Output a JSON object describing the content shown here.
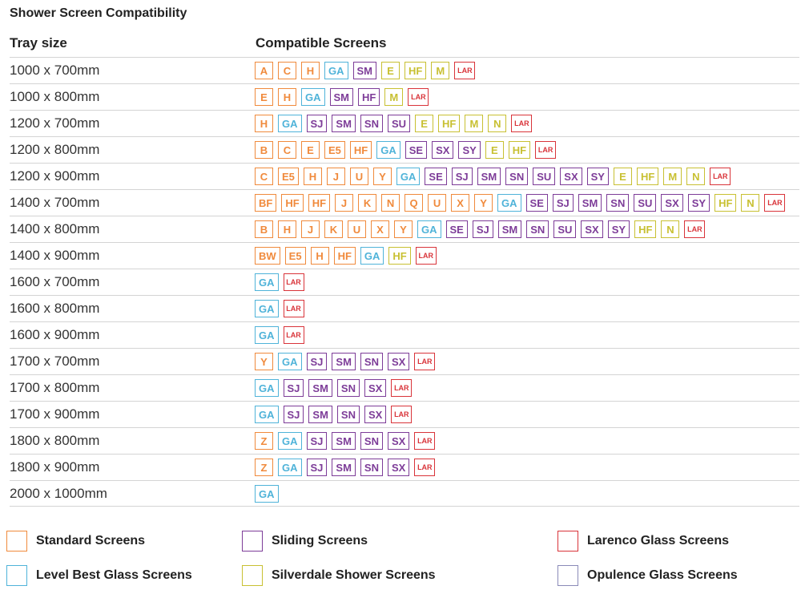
{
  "title": "Shower Screen Compatibility",
  "headers": {
    "tray": "Tray size",
    "compatible": "Compatible Screens"
  },
  "categories": {
    "standard": {
      "label": "Standard Screens",
      "color": "#f08a3c"
    },
    "levelbest": {
      "label": "Level Best Glass Screens",
      "color": "#4fb3d9"
    },
    "sliding": {
      "label": "Sliding Screens",
      "color": "#7d3c98"
    },
    "silverdale": {
      "label": "Silverdale Shower Screens",
      "color": "#c8c032"
    },
    "larenco": {
      "label": "Larenco Glass Screens",
      "color": "#d9343a"
    },
    "opulence": {
      "label": "Opulence Glass Screens",
      "color": "#8a8ab8"
    }
  },
  "rows": [
    {
      "tray": "1000 x 700mm",
      "screens": [
        [
          "A",
          "standard"
        ],
        [
          "C",
          "standard"
        ],
        [
          "H",
          "standard"
        ],
        [
          "GA",
          "levelbest"
        ],
        [
          "SM",
          "sliding"
        ],
        [
          "E",
          "silverdale"
        ],
        [
          "HF",
          "silverdale"
        ],
        [
          "M",
          "silverdale"
        ],
        [
          "LAR",
          "larenco"
        ]
      ]
    },
    {
      "tray": "1000 x 800mm",
      "screens": [
        [
          "E",
          "standard"
        ],
        [
          "H",
          "standard"
        ],
        [
          "GA",
          "levelbest"
        ],
        [
          "SM",
          "sliding"
        ],
        [
          "HF",
          "sliding"
        ],
        [
          "M",
          "silverdale"
        ],
        [
          "LAR",
          "larenco"
        ]
      ]
    },
    {
      "tray": "1200 x 700mm",
      "screens": [
        [
          "H",
          "standard"
        ],
        [
          "GA",
          "levelbest"
        ],
        [
          "SJ",
          "sliding"
        ],
        [
          "SM",
          "sliding"
        ],
        [
          "SN",
          "sliding"
        ],
        [
          "SU",
          "sliding"
        ],
        [
          "E",
          "silverdale"
        ],
        [
          "HF",
          "silverdale"
        ],
        [
          "M",
          "silverdale"
        ],
        [
          "N",
          "silverdale"
        ],
        [
          "LAR",
          "larenco"
        ]
      ]
    },
    {
      "tray": "1200 x 800mm",
      "screens": [
        [
          "B",
          "standard"
        ],
        [
          "C",
          "standard"
        ],
        [
          "E",
          "standard"
        ],
        [
          "E5",
          "standard"
        ],
        [
          "HF",
          "standard"
        ],
        [
          "GA",
          "levelbest"
        ],
        [
          "SE",
          "sliding"
        ],
        [
          "SX",
          "sliding"
        ],
        [
          "SY",
          "sliding"
        ],
        [
          "E",
          "silverdale"
        ],
        [
          "HF",
          "silverdale"
        ],
        [
          "LAR",
          "larenco"
        ]
      ]
    },
    {
      "tray": "1200 x 900mm",
      "screens": [
        [
          "C",
          "standard"
        ],
        [
          "E5",
          "standard"
        ],
        [
          "H",
          "standard"
        ],
        [
          "J",
          "standard"
        ],
        [
          "U",
          "standard"
        ],
        [
          "Y",
          "standard"
        ],
        [
          "GA",
          "levelbest"
        ],
        [
          "SE",
          "sliding"
        ],
        [
          "SJ",
          "sliding"
        ],
        [
          "SM",
          "sliding"
        ],
        [
          "SN",
          "sliding"
        ],
        [
          "SU",
          "sliding"
        ],
        [
          "SX",
          "sliding"
        ],
        [
          "SY",
          "sliding"
        ],
        [
          "E",
          "silverdale"
        ],
        [
          "HF",
          "silverdale"
        ],
        [
          "M",
          "silverdale"
        ],
        [
          "N",
          "silverdale"
        ],
        [
          "LAR",
          "larenco"
        ]
      ]
    },
    {
      "tray": "1400 x 700mm",
      "screens": [
        [
          "BF",
          "standard"
        ],
        [
          "HF",
          "standard"
        ],
        [
          "HF",
          "standard"
        ],
        [
          "J",
          "standard"
        ],
        [
          "K",
          "standard"
        ],
        [
          "N",
          "standard"
        ],
        [
          "Q",
          "standard"
        ],
        [
          "U",
          "standard"
        ],
        [
          "X",
          "standard"
        ],
        [
          "Y",
          "standard"
        ],
        [
          "GA",
          "levelbest"
        ],
        [
          "SE",
          "sliding"
        ],
        [
          "SJ",
          "sliding"
        ],
        [
          "SM",
          "sliding"
        ],
        [
          "SN",
          "sliding"
        ],
        [
          "SU",
          "sliding"
        ],
        [
          "SX",
          "sliding"
        ],
        [
          "SY",
          "sliding"
        ],
        [
          "HF",
          "silverdale"
        ],
        [
          "N",
          "silverdale"
        ],
        [
          "LAR",
          "larenco"
        ]
      ]
    },
    {
      "tray": "1400 x 800mm",
      "screens": [
        [
          "B",
          "standard"
        ],
        [
          "H",
          "standard"
        ],
        [
          "J",
          "standard"
        ],
        [
          "K",
          "standard"
        ],
        [
          "U",
          "standard"
        ],
        [
          "X",
          "standard"
        ],
        [
          "Y",
          "standard"
        ],
        [
          "GA",
          "levelbest"
        ],
        [
          "SE",
          "sliding"
        ],
        [
          "SJ",
          "sliding"
        ],
        [
          "SM",
          "sliding"
        ],
        [
          "SN",
          "sliding"
        ],
        [
          "SU",
          "sliding"
        ],
        [
          "SX",
          "sliding"
        ],
        [
          "SY",
          "sliding"
        ],
        [
          "HF",
          "silverdale"
        ],
        [
          "N",
          "silverdale"
        ],
        [
          "LAR",
          "larenco"
        ]
      ]
    },
    {
      "tray": "1400 x 900mm",
      "screens": [
        [
          "BW",
          "standard"
        ],
        [
          "E5",
          "standard"
        ],
        [
          "H",
          "standard"
        ],
        [
          "HF",
          "standard"
        ],
        [
          "GA",
          "levelbest"
        ],
        [
          "HF",
          "silverdale"
        ],
        [
          "LAR",
          "larenco"
        ]
      ]
    },
    {
      "tray": "1600 x 700mm",
      "screens": [
        [
          "GA",
          "levelbest"
        ],
        [
          "LAR",
          "larenco"
        ]
      ]
    },
    {
      "tray": "1600 x 800mm",
      "screens": [
        [
          "GA",
          "levelbest"
        ],
        [
          "LAR",
          "larenco"
        ]
      ]
    },
    {
      "tray": "1600 x 900mm",
      "screens": [
        [
          "GA",
          "levelbest"
        ],
        [
          "LAR",
          "larenco"
        ]
      ]
    },
    {
      "tray": "1700 x 700mm",
      "screens": [
        [
          "Y",
          "standard"
        ],
        [
          "GA",
          "levelbest"
        ],
        [
          "SJ",
          "sliding"
        ],
        [
          "SM",
          "sliding"
        ],
        [
          "SN",
          "sliding"
        ],
        [
          "SX",
          "sliding"
        ],
        [
          "LAR",
          "larenco"
        ]
      ]
    },
    {
      "tray": "1700 x 800mm",
      "screens": [
        [
          "GA",
          "levelbest"
        ],
        [
          "SJ",
          "sliding"
        ],
        [
          "SM",
          "sliding"
        ],
        [
          "SN",
          "sliding"
        ],
        [
          "SX",
          "sliding"
        ],
        [
          "LAR",
          "larenco"
        ]
      ]
    },
    {
      "tray": "1700 x 900mm",
      "screens": [
        [
          "GA",
          "levelbest"
        ],
        [
          "SJ",
          "sliding"
        ],
        [
          "SM",
          "sliding"
        ],
        [
          "SN",
          "sliding"
        ],
        [
          "SX",
          "sliding"
        ],
        [
          "LAR",
          "larenco"
        ]
      ]
    },
    {
      "tray": "1800 x 800mm",
      "screens": [
        [
          "Z",
          "standard"
        ],
        [
          "GA",
          "levelbest"
        ],
        [
          "SJ",
          "sliding"
        ],
        [
          "SM",
          "sliding"
        ],
        [
          "SN",
          "sliding"
        ],
        [
          "SX",
          "sliding"
        ],
        [
          "LAR",
          "larenco"
        ]
      ]
    },
    {
      "tray": "1800 x 900mm",
      "screens": [
        [
          "Z",
          "standard"
        ],
        [
          "GA",
          "levelbest"
        ],
        [
          "SJ",
          "sliding"
        ],
        [
          "SM",
          "sliding"
        ],
        [
          "SN",
          "sliding"
        ],
        [
          "SX",
          "sliding"
        ],
        [
          "LAR",
          "larenco"
        ]
      ]
    },
    {
      "tray": "2000 x 1000mm",
      "screens": [
        [
          "GA",
          "levelbest"
        ]
      ]
    }
  ],
  "legend": [
    "standard",
    "sliding",
    "larenco",
    "levelbest",
    "silverdale",
    "opulence"
  ]
}
